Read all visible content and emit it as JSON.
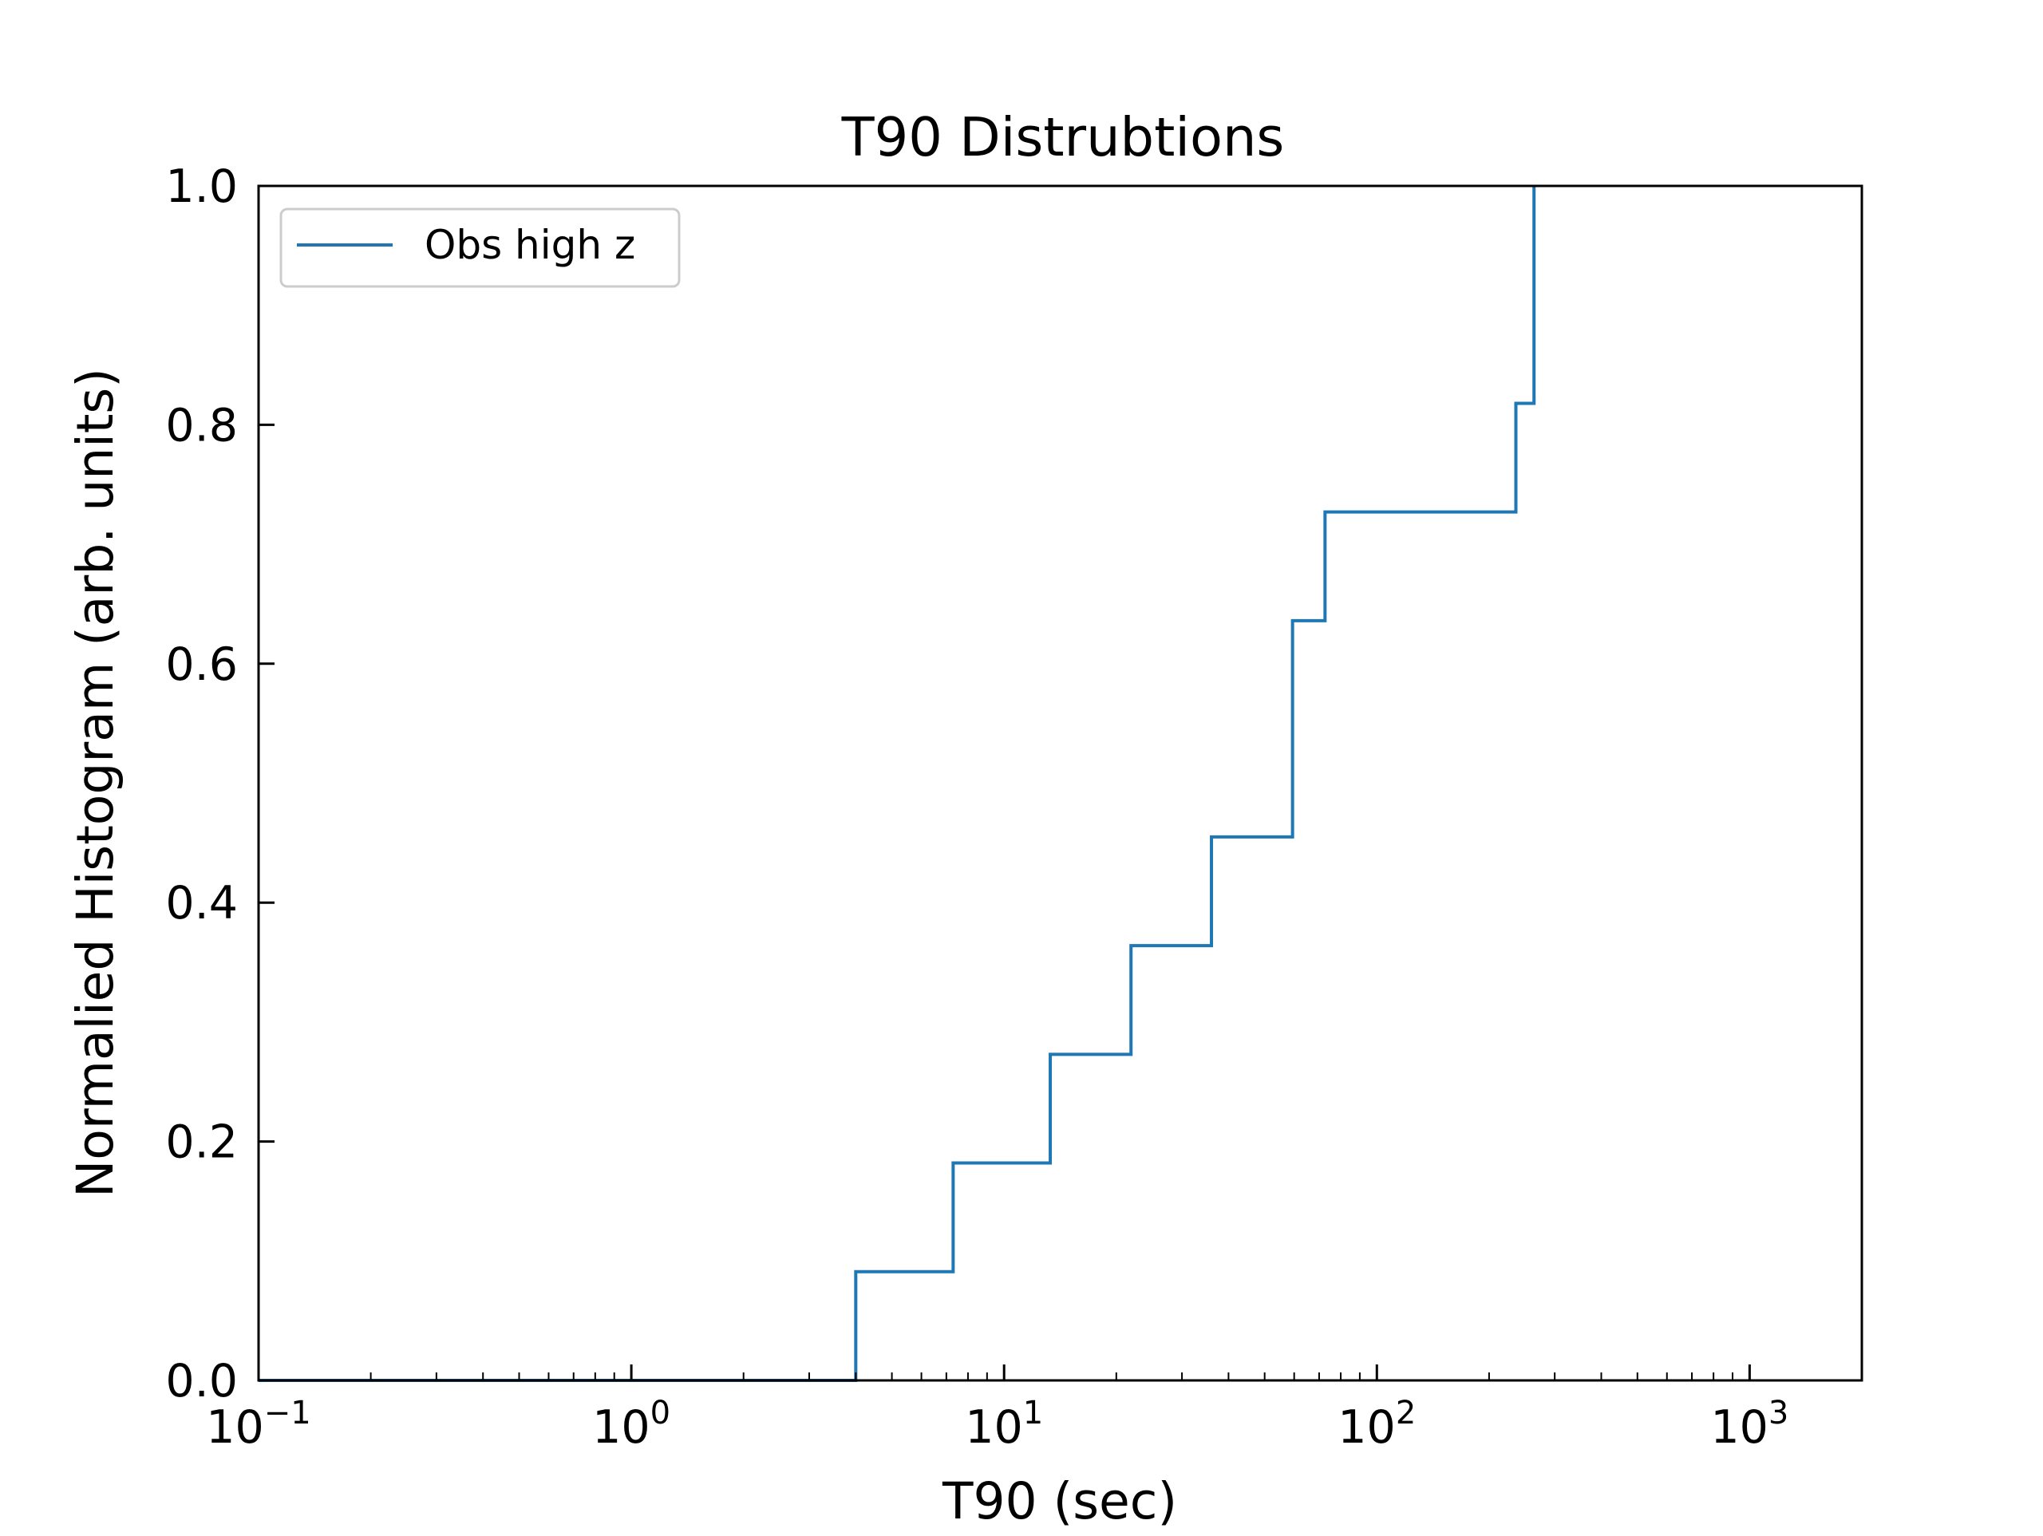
{
  "chart_data": {
    "type": "step",
    "title": "T90 Distrubtions",
    "xlabel": "T90 (sec)",
    "ylabel": "Normalied Histogram (arb. units)",
    "xscale": "log",
    "xlim": [
      0.1,
      2000
    ],
    "ylim": [
      0.0,
      1.0
    ],
    "x_ticks": [
      {
        "value": 0.1,
        "base": "10",
        "exp": "−1"
      },
      {
        "value": 1,
        "base": "10",
        "exp": "0"
      },
      {
        "value": 10,
        "base": "10",
        "exp": "1"
      },
      {
        "value": 100,
        "base": "10",
        "exp": "2"
      },
      {
        "value": 1000,
        "base": "10",
        "exp": "3"
      }
    ],
    "y_ticks": [
      {
        "value": 0.0,
        "label": "0.0"
      },
      {
        "value": 0.2,
        "label": "0.2"
      },
      {
        "value": 0.4,
        "label": "0.4"
      },
      {
        "value": 0.6,
        "label": "0.6"
      },
      {
        "value": 0.8,
        "label": "0.8"
      },
      {
        "value": 1.0,
        "label": "1.0"
      }
    ],
    "grid": false,
    "legend": {
      "position": "top-left",
      "entries": [
        "Obs high z"
      ]
    },
    "series": [
      {
        "name": "Obs high z",
        "color": "#1f77b4",
        "style": "cumulative-step",
        "x": [
          0.1,
          4.0,
          7.3,
          13.3,
          21.9,
          36.0,
          59.4,
          72.6,
          236.0,
          264.0,
          264.0
        ],
        "y": [
          0.0,
          0.091,
          0.182,
          0.273,
          0.364,
          0.455,
          0.636,
          0.727,
          0.818,
          1.0,
          1.0
        ]
      }
    ]
  }
}
